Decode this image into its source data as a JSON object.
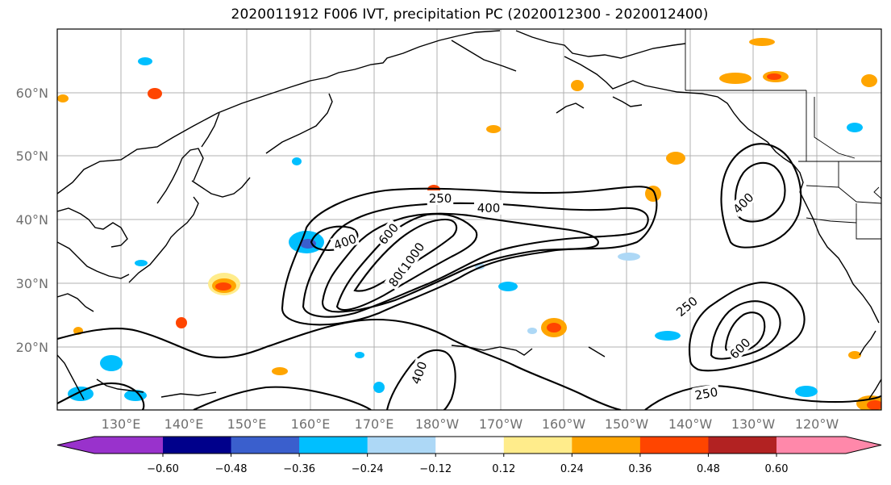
{
  "title": "2020011912 F006 IVT, precipitation PC (2020012300 - 2020012400)",
  "latitudes": [
    "20°N",
    "30°N",
    "40°N",
    "50°N",
    "60°N"
  ],
  "longitudes": [
    "130°E",
    "140°E",
    "150°E",
    "160°E",
    "170°E",
    "180°W",
    "170°W",
    "160°W",
    "150°W",
    "140°W",
    "130°W",
    "120°W"
  ],
  "contour_levels": [
    "250",
    "400",
    "600",
    "800",
    "1000"
  ],
  "contour_labels": [
    "250",
    "400",
    "600",
    "800",
    "1000",
    "250",
    "400",
    "600",
    "250",
    "400"
  ],
  "colorbar": {
    "ticks": [
      "−0.60",
      "−0.48",
      "−0.36",
      "−0.24",
      "−0.12",
      "0.12",
      "0.24",
      "0.36",
      "0.48",
      "0.60"
    ],
    "colors": [
      "#9932cc",
      "#00008b",
      "#3a5fcd",
      "#00bfff",
      "#add8f6",
      "#ffffff",
      "#ffec8b",
      "#ffa500",
      "#ff4500",
      "#b22222",
      "#ff88aa"
    ]
  }
}
